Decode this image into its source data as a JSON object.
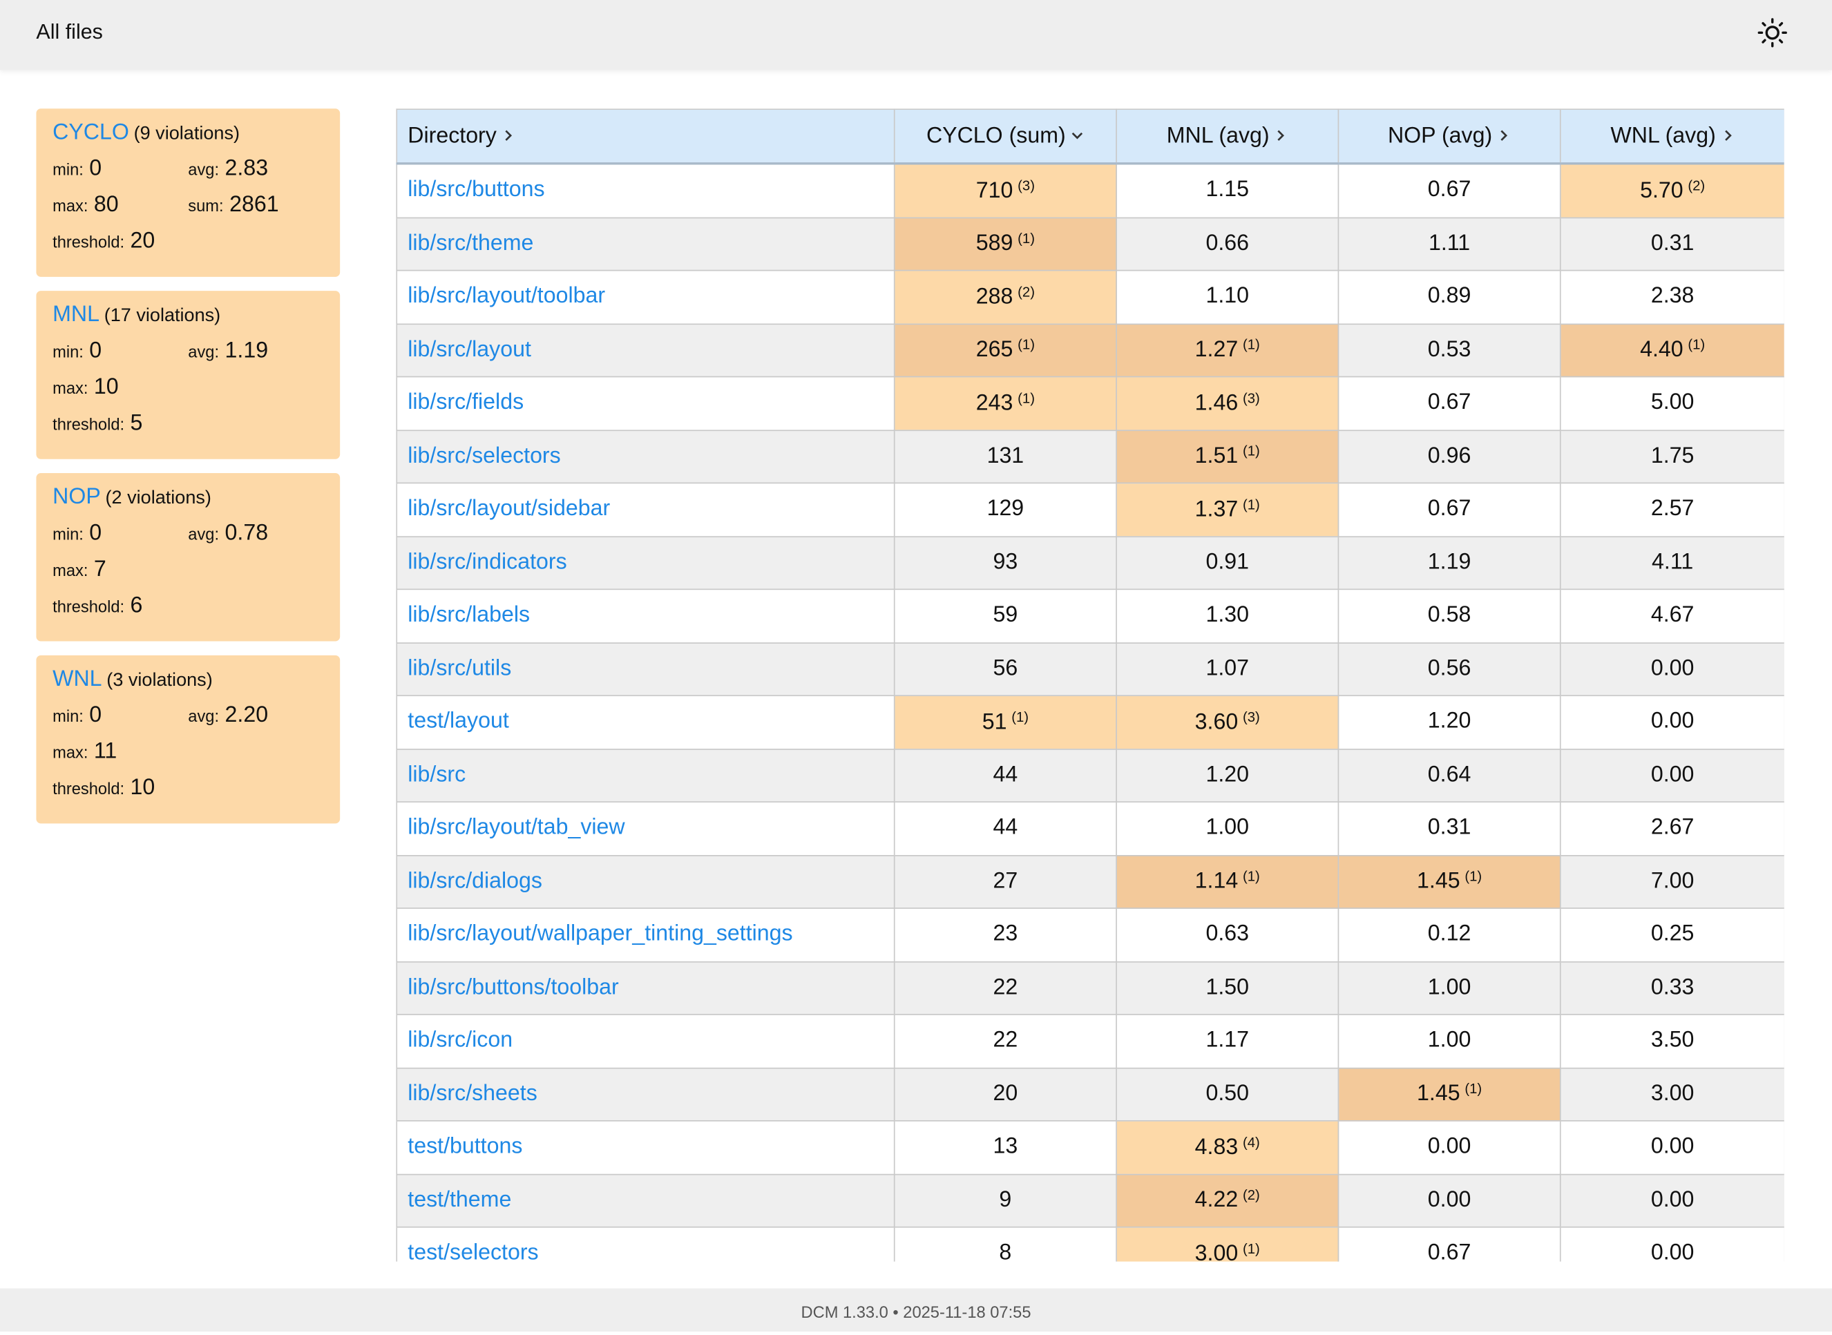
{
  "header": {
    "title": "All files"
  },
  "metrics": [
    {
      "name": "CYCLO",
      "violations": "(9 violations)",
      "stats": [
        [
          [
            "min:",
            "0"
          ],
          [
            "avg:",
            "2.83"
          ]
        ],
        [
          [
            "max:",
            "80"
          ],
          [
            "sum:",
            "2861"
          ]
        ],
        [
          [
            "threshold:",
            "20"
          ]
        ]
      ]
    },
    {
      "name": "MNL",
      "violations": "(17 violations)",
      "stats": [
        [
          [
            "min:",
            "0"
          ],
          [
            "avg:",
            "1.19"
          ]
        ],
        [
          [
            "max:",
            "10"
          ]
        ],
        [
          [
            "threshold:",
            "5"
          ]
        ]
      ]
    },
    {
      "name": "NOP",
      "violations": "(2 violations)",
      "stats": [
        [
          [
            "min:",
            "0"
          ],
          [
            "avg:",
            "0.78"
          ]
        ],
        [
          [
            "max:",
            "7"
          ]
        ],
        [
          [
            "threshold:",
            "6"
          ]
        ]
      ]
    },
    {
      "name": "WNL",
      "violations": "(3 violations)",
      "stats": [
        [
          [
            "min:",
            "0"
          ],
          [
            "avg:",
            "2.20"
          ]
        ],
        [
          [
            "max:",
            "11"
          ]
        ],
        [
          [
            "threshold:",
            "10"
          ]
        ]
      ]
    }
  ],
  "table": {
    "columns": [
      "Directory",
      "CYCLO (sum)",
      "MNL (avg)",
      "NOP (avg)",
      "WNL (avg)"
    ],
    "sorted_column": 1,
    "rows": [
      {
        "directory": "lib/src/buttons",
        "cells": [
          [
            "710",
            "(3)"
          ],
          [
            "1.15"
          ],
          [
            "0.67"
          ],
          [
            "5.70",
            "(2)"
          ]
        ]
      },
      {
        "directory": "lib/src/theme",
        "cells": [
          [
            "589",
            "(1)"
          ],
          [
            "0.66"
          ],
          [
            "1.11"
          ],
          [
            "0.31"
          ]
        ]
      },
      {
        "directory": "lib/src/layout/toolbar",
        "cells": [
          [
            "288",
            "(2)"
          ],
          [
            "1.10"
          ],
          [
            "0.89"
          ],
          [
            "2.38"
          ]
        ]
      },
      {
        "directory": "lib/src/layout",
        "cells": [
          [
            "265",
            "(1)"
          ],
          [
            "1.27",
            "(1)"
          ],
          [
            "0.53"
          ],
          [
            "4.40",
            "(1)"
          ]
        ]
      },
      {
        "directory": "lib/src/fields",
        "cells": [
          [
            "243",
            "(1)"
          ],
          [
            "1.46",
            "(3)"
          ],
          [
            "0.67"
          ],
          [
            "5.00"
          ]
        ]
      },
      {
        "directory": "lib/src/selectors",
        "cells": [
          [
            "131"
          ],
          [
            "1.51",
            "(1)"
          ],
          [
            "0.96"
          ],
          [
            "1.75"
          ]
        ]
      },
      {
        "directory": "lib/src/layout/sidebar",
        "cells": [
          [
            "129"
          ],
          [
            "1.37",
            "(1)"
          ],
          [
            "0.67"
          ],
          [
            "2.57"
          ]
        ]
      },
      {
        "directory": "lib/src/indicators",
        "cells": [
          [
            "93"
          ],
          [
            "0.91"
          ],
          [
            "1.19"
          ],
          [
            "4.11"
          ]
        ]
      },
      {
        "directory": "lib/src/labels",
        "cells": [
          [
            "59"
          ],
          [
            "1.30"
          ],
          [
            "0.58"
          ],
          [
            "4.67"
          ]
        ]
      },
      {
        "directory": "lib/src/utils",
        "cells": [
          [
            "56"
          ],
          [
            "1.07"
          ],
          [
            "0.56"
          ],
          [
            "0.00"
          ]
        ]
      },
      {
        "directory": "test/layout",
        "cells": [
          [
            "51",
            "(1)"
          ],
          [
            "3.60",
            "(3)"
          ],
          [
            "1.20"
          ],
          [
            "0.00"
          ]
        ]
      },
      {
        "directory": "lib/src",
        "cells": [
          [
            "44"
          ],
          [
            "1.20"
          ],
          [
            "0.64"
          ],
          [
            "0.00"
          ]
        ]
      },
      {
        "directory": "lib/src/layout/tab_view",
        "cells": [
          [
            "44"
          ],
          [
            "1.00"
          ],
          [
            "0.31"
          ],
          [
            "2.67"
          ]
        ]
      },
      {
        "directory": "lib/src/dialogs",
        "cells": [
          [
            "27"
          ],
          [
            "1.14",
            "(1)"
          ],
          [
            "1.45",
            "(1)"
          ],
          [
            "7.00"
          ]
        ]
      },
      {
        "directory": "lib/src/layout/wallpaper_tinting_settings",
        "cells": [
          [
            "23"
          ],
          [
            "0.63"
          ],
          [
            "0.12"
          ],
          [
            "0.25"
          ]
        ]
      },
      {
        "directory": "lib/src/buttons/toolbar",
        "cells": [
          [
            "22"
          ],
          [
            "1.50"
          ],
          [
            "1.00"
          ],
          [
            "0.33"
          ]
        ]
      },
      {
        "directory": "lib/src/icon",
        "cells": [
          [
            "22"
          ],
          [
            "1.17"
          ],
          [
            "1.00"
          ],
          [
            "3.50"
          ]
        ]
      },
      {
        "directory": "lib/src/sheets",
        "cells": [
          [
            "20"
          ],
          [
            "0.50"
          ],
          [
            "1.45",
            "(1)"
          ],
          [
            "3.00"
          ]
        ]
      },
      {
        "directory": "test/buttons",
        "cells": [
          [
            "13"
          ],
          [
            "4.83",
            "(4)"
          ],
          [
            "0.00"
          ],
          [
            "0.00"
          ]
        ]
      },
      {
        "directory": "test/theme",
        "cells": [
          [
            "9"
          ],
          [
            "4.22",
            "(2)"
          ],
          [
            "0.00"
          ],
          [
            "0.00"
          ]
        ]
      },
      {
        "directory": "test/selectors",
        "cells": [
          [
            "8"
          ],
          [
            "3.00",
            "(1)"
          ],
          [
            "0.67"
          ],
          [
            "0.00"
          ]
        ]
      }
    ]
  },
  "footer": {
    "text": "DCM 1.33.0 • 2025-11-18 07:55"
  }
}
